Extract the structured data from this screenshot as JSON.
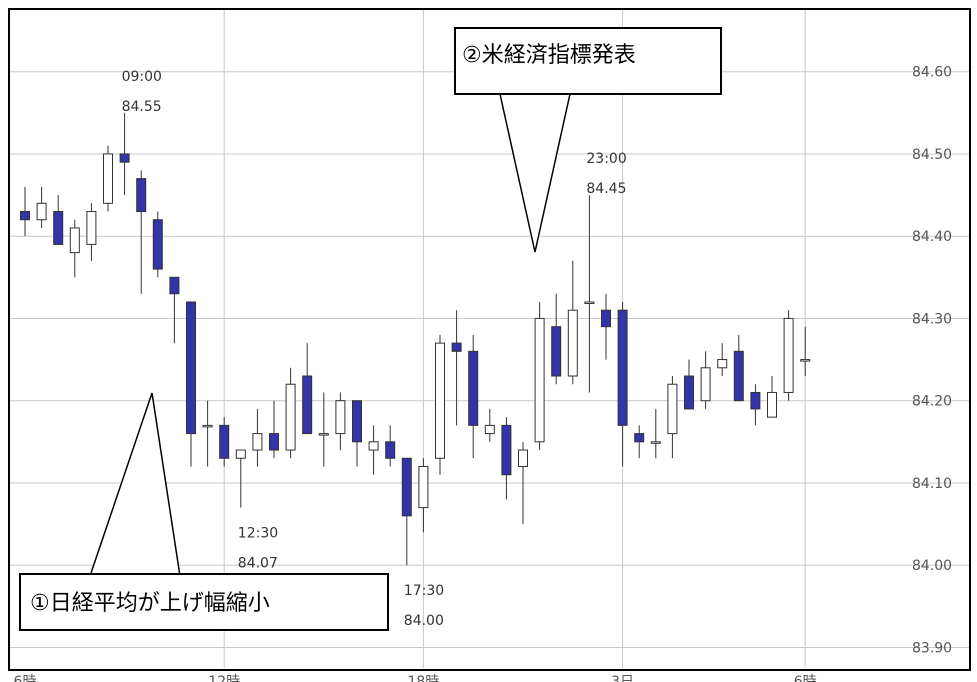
{
  "chart_data": {
    "type": "candlestick",
    "categories": [
      "6時",
      null,
      null,
      null,
      null,
      null,
      null,
      null,
      null,
      null,
      null,
      null,
      "12時",
      null,
      null,
      null,
      null,
      null,
      null,
      null,
      null,
      null,
      null,
      null,
      "18時",
      null,
      null,
      null,
      null,
      null,
      null,
      null,
      null,
      null,
      null,
      null,
      "3日",
      null,
      null,
      null,
      null,
      null,
      null,
      null,
      null,
      null,
      null,
      "6時"
    ],
    "series": [
      {
        "name": "open",
        "values": [
          84.43,
          84.42,
          84.43,
          84.38,
          84.39,
          84.44,
          84.5,
          84.47,
          84.42,
          84.35,
          84.32,
          84.17,
          84.17,
          84.13,
          84.14,
          84.16,
          84.14,
          84.23,
          84.16,
          84.16,
          84.2,
          84.14,
          84.15,
          84.13,
          84.07,
          84.13,
          84.27,
          84.26,
          84.16,
          84.17,
          84.12,
          84.15,
          84.29,
          84.23,
          84.32,
          84.31,
          84.31,
          84.16,
          84.15,
          84.16,
          84.23,
          84.2,
          84.24,
          84.26,
          84.21,
          84.18,
          84.21,
          84.25
        ]
      },
      {
        "name": "high",
        "values": [
          84.46,
          84.46,
          84.45,
          84.42,
          84.44,
          84.51,
          84.55,
          84.48,
          84.43,
          84.35,
          84.32,
          84.2,
          84.18,
          84.14,
          84.19,
          84.2,
          84.24,
          84.27,
          84.21,
          84.21,
          84.2,
          84.17,
          84.17,
          84.13,
          84.13,
          84.28,
          84.31,
          84.28,
          84.19,
          84.18,
          84.15,
          84.32,
          84.33,
          84.37,
          84.45,
          84.33,
          84.32,
          84.17,
          84.19,
          84.23,
          84.25,
          84.26,
          84.27,
          84.28,
          84.22,
          84.23,
          84.31,
          84.29
        ]
      },
      {
        "name": "low",
        "values": [
          84.4,
          84.41,
          84.39,
          84.35,
          84.37,
          84.43,
          84.45,
          84.33,
          84.35,
          84.27,
          84.12,
          84.12,
          84.12,
          84.07,
          84.12,
          84.13,
          84.13,
          84.16,
          84.12,
          84.14,
          84.12,
          84.11,
          84.12,
          84.0,
          84.04,
          84.11,
          84.17,
          84.13,
          84.15,
          84.08,
          84.05,
          84.14,
          84.22,
          84.22,
          84.21,
          84.25,
          84.12,
          84.13,
          84.13,
          84.13,
          84.19,
          84.19,
          84.23,
          84.2,
          84.17,
          84.18,
          84.2,
          84.23
        ]
      },
      {
        "name": "close",
        "values": [
          84.42,
          84.44,
          84.39,
          84.41,
          84.43,
          84.5,
          84.49,
          84.43,
          84.36,
          84.33,
          84.16,
          84.17,
          84.13,
          84.14,
          84.16,
          84.14,
          84.22,
          84.16,
          84.16,
          84.2,
          84.15,
          84.15,
          84.13,
          84.06,
          84.12,
          84.27,
          84.26,
          84.17,
          84.17,
          84.11,
          84.14,
          84.3,
          84.23,
          84.31,
          84.32,
          84.29,
          84.17,
          84.15,
          84.15,
          84.22,
          84.19,
          84.24,
          84.25,
          84.2,
          84.19,
          84.21,
          84.3,
          84.25
        ]
      }
    ],
    "up_color": "#ffffff",
    "down_color": "#3333aa",
    "ylim": [
      83.875,
      84.675
    ],
    "yticks": [
      {
        "value": 83.9,
        "label": "83.90"
      },
      {
        "value": 84.0,
        "label": "84.00"
      },
      {
        "value": 84.1,
        "label": "84.10"
      },
      {
        "value": 84.2,
        "label": "84.20"
      },
      {
        "value": 84.3,
        "label": "84.30"
      },
      {
        "value": 84.4,
        "label": "84.40"
      },
      {
        "value": 84.5,
        "label": "84.50"
      },
      {
        "value": 84.6,
        "label": "84.60"
      }
    ],
    "grid": true,
    "annotations": [
      {
        "index": 6,
        "time": "09:00",
        "price": 84.55,
        "price_label": "84.55"
      },
      {
        "index": 13,
        "time": "12:30",
        "price": 84.07,
        "price_label": "84.07"
      },
      {
        "index": 23,
        "time": "17:30",
        "price": 84.0,
        "price_label": "84.00"
      },
      {
        "index": 34,
        "time": "23:00",
        "price": 84.45,
        "price_label": "84.45"
      }
    ],
    "callouts": [
      "①日経平均が上げ幅縮小",
      "②米経済指標発表"
    ]
  }
}
